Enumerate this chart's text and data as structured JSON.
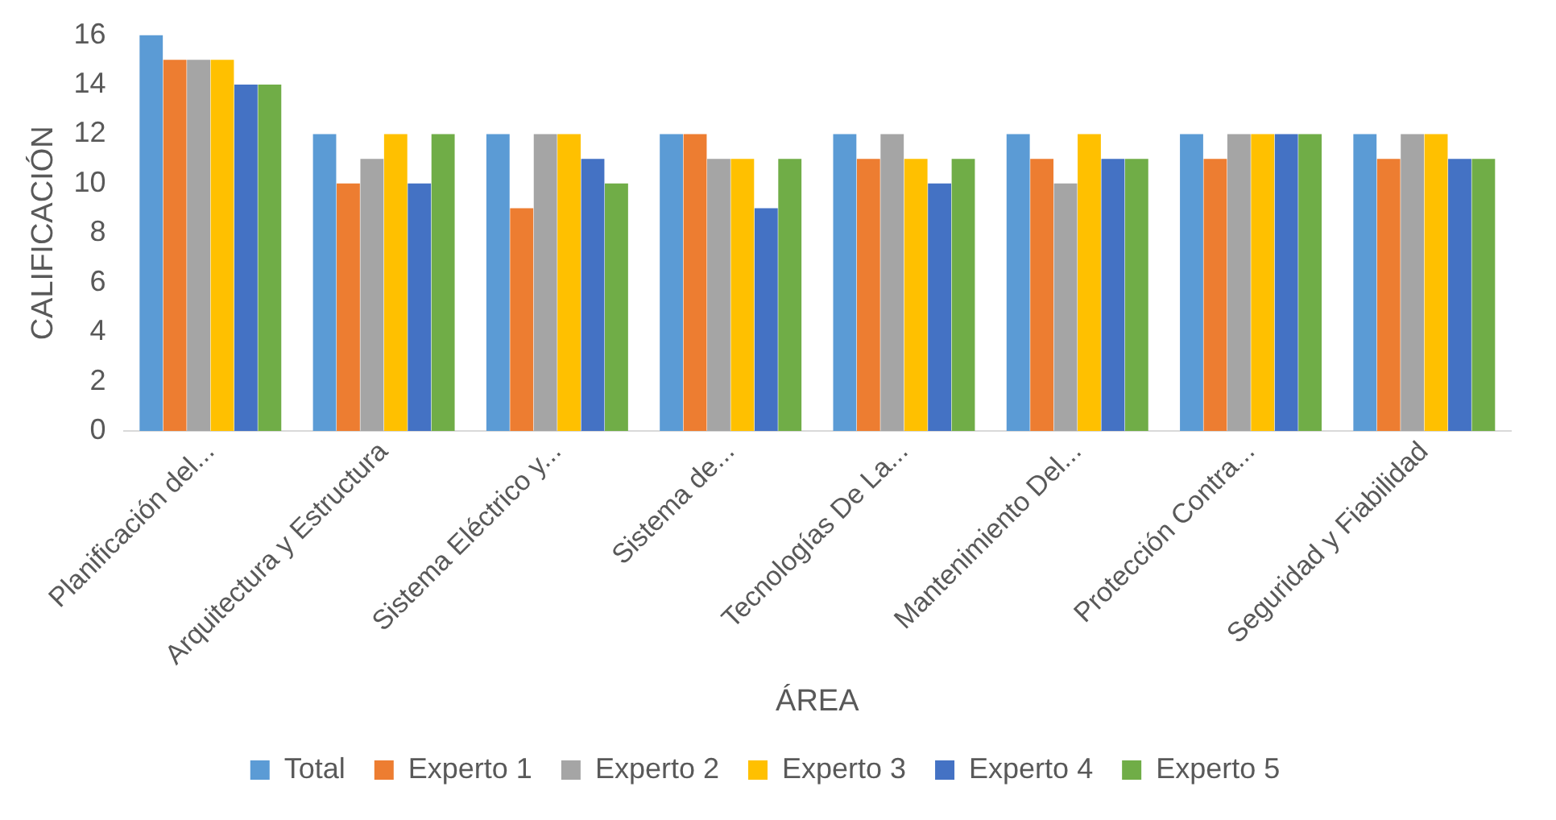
{
  "chart_data": {
    "type": "bar",
    "xlabel": "ÁREA",
    "ylabel": "CALIFICACIÓN",
    "categories": [
      "Planificación del...",
      "Arquitectura y Estructura",
      "Sistema Eléctrico y...",
      "Sistema de...",
      "Tecnologías De La...",
      "Mantenimiento Del...",
      "Protección Contra...",
      "Seguridad y Fiabilidad"
    ],
    "series": [
      {
        "name": "Total",
        "color": "#5b9bd5",
        "values": [
          16,
          12,
          12,
          12,
          12,
          12,
          12,
          12
        ]
      },
      {
        "name": "Experto 1",
        "color": "#ed7d31",
        "values": [
          15,
          10,
          9,
          12,
          11,
          11,
          11,
          11
        ]
      },
      {
        "name": "Experto 2",
        "color": "#a5a5a5",
        "values": [
          15,
          11,
          12,
          11,
          12,
          10,
          12,
          12
        ]
      },
      {
        "name": "Experto 3",
        "color": "#ffc000",
        "values": [
          15,
          12,
          12,
          11,
          11,
          12,
          12,
          12
        ]
      },
      {
        "name": "Experto 4",
        "color": "#4472c4",
        "values": [
          14,
          10,
          11,
          9,
          10,
          11,
          12,
          11
        ]
      },
      {
        "name": "Experto 5",
        "color": "#70ad47",
        "values": [
          14,
          12,
          10,
          11,
          11,
          11,
          12,
          11
        ]
      }
    ],
    "ylim": [
      0,
      16
    ],
    "yticks": [
      0,
      2,
      4,
      6,
      8,
      10,
      12,
      14,
      16
    ],
    "grid": false,
    "legend": "bottom"
  }
}
